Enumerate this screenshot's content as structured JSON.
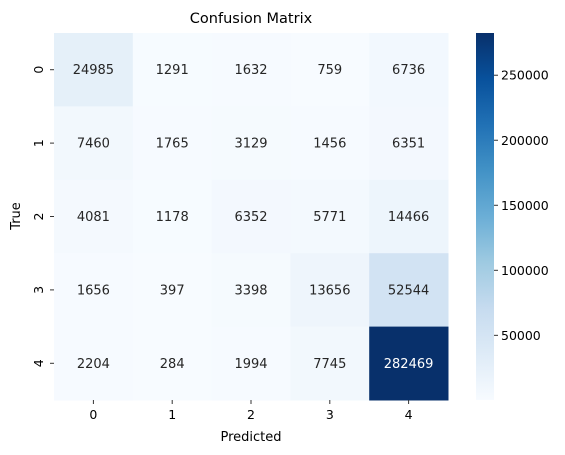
{
  "chart_data": {
    "type": "heatmap",
    "title": "Confusion Matrix",
    "xlabel": "Predicted",
    "ylabel": "True",
    "x_categories": [
      "0",
      "1",
      "2",
      "3",
      "4"
    ],
    "y_categories": [
      "0",
      "1",
      "2",
      "3",
      "4"
    ],
    "values": [
      [
        24985,
        1291,
        1632,
        759,
        6736
      ],
      [
        7460,
        1765,
        3129,
        1456,
        6351
      ],
      [
        4081,
        1178,
        6352,
        5771,
        14466
      ],
      [
        1656,
        397,
        3398,
        13656,
        52544
      ],
      [
        2204,
        284,
        1994,
        7745,
        282469
      ]
    ],
    "colormap": "Blues",
    "colorbar": {
      "min": 284,
      "max": 282469,
      "ticks": [
        50000,
        100000,
        150000,
        200000,
        250000
      ],
      "tick_labels": [
        "50000",
        "100000",
        "150000",
        "200000",
        "250000"
      ]
    },
    "annotations": true
  }
}
